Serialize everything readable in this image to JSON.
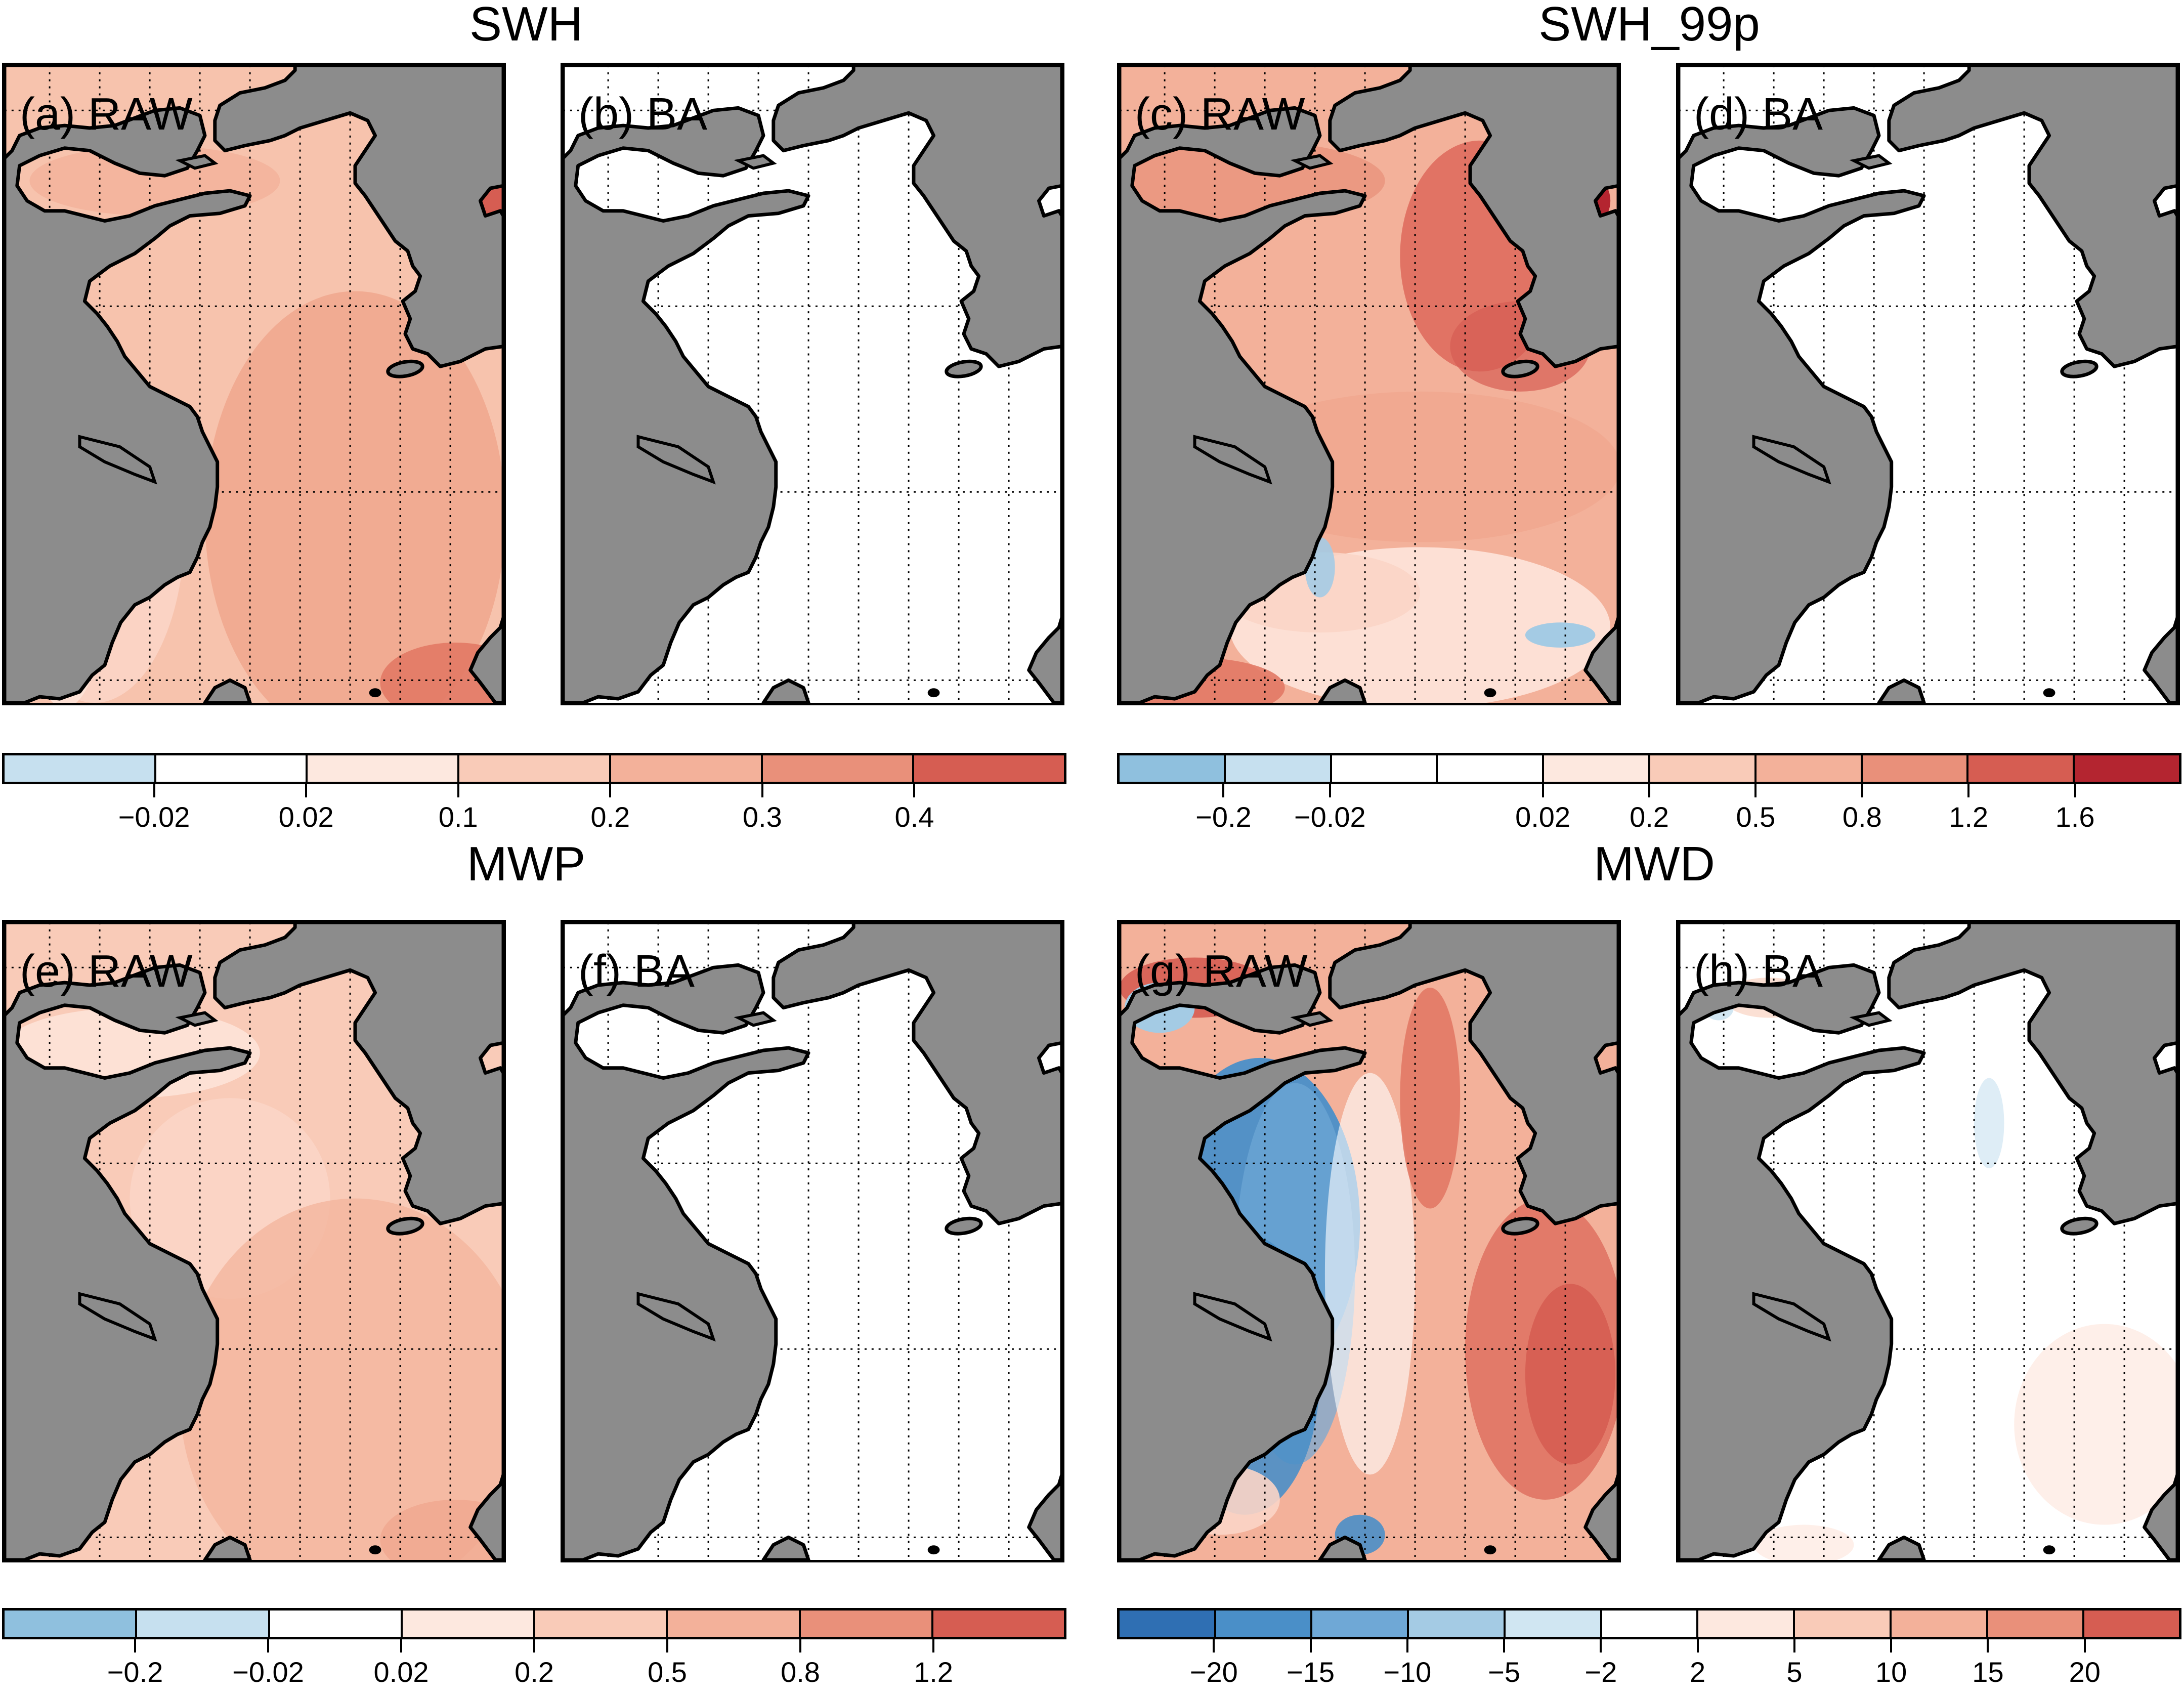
{
  "titles": {
    "swh": "SWH",
    "swh99": "SWH_99p",
    "mwp": "MWP",
    "mwd": "MWD"
  },
  "panels": [
    {
      "id": "a",
      "label": "(a) RAW",
      "variable": "SWH",
      "field": "raw-swh"
    },
    {
      "id": "b",
      "label": "(b) BA",
      "variable": "SWH",
      "field": "ba"
    },
    {
      "id": "c",
      "label": "(c) RAW",
      "variable": "SWH_99p",
      "field": "raw-swh99"
    },
    {
      "id": "d",
      "label": "(d) BA",
      "variable": "SWH_99p",
      "field": "ba"
    },
    {
      "id": "e",
      "label": "(e) RAW",
      "variable": "MWP",
      "field": "raw-mwp"
    },
    {
      "id": "f",
      "label": "(f) BA",
      "variable": "MWP",
      "field": "ba"
    },
    {
      "id": "g",
      "label": "(g) RAW",
      "variable": "MWD",
      "field": "raw-mwd"
    },
    {
      "id": "h",
      "label": "(h) BA",
      "variable": "MWD",
      "field": "ba-mwd"
    }
  ],
  "colorbars": {
    "swh": {
      "colors": [
        "#c6e0ef",
        "#ffffff",
        "#fde8df",
        "#f9cbb8",
        "#f3b19a",
        "#e9907a",
        "#d65d52"
      ],
      "ticks": [
        "−0.02",
        "0.02",
        "0.1",
        "0.2",
        "0.3",
        "0.4"
      ]
    },
    "swh99": {
      "colors": [
        "#8fc0de",
        "#c6e0ef",
        "#ffffff",
        "#ffffff",
        "#fde8df",
        "#f9cbb8",
        "#f3b19a",
        "#e9907a",
        "#d65d52",
        "#b42530"
      ],
      "ticks": [
        "−0.2",
        "−0.02",
        "0.02",
        "0.2",
        "0.5",
        "0.8",
        "1.2",
        "1.6"
      ],
      "tick_after": [
        1,
        2,
        3,
        4,
        5,
        6,
        7,
        8
      ]
    },
    "mwp": {
      "colors": [
        "#8fc0de",
        "#c6e0ef",
        "#ffffff",
        "#fde8df",
        "#f9cbb8",
        "#f3b19a",
        "#e9907a",
        "#d65d52"
      ],
      "ticks": [
        "−0.2",
        "−0.02",
        "0.02",
        "0.2",
        "0.5",
        "0.8",
        "1.2"
      ]
    },
    "mwd": {
      "colors": [
        "#2f6fb3",
        "#4a8fc8",
        "#6fa8d6",
        "#a4cbe4",
        "#d0e6f2",
        "#ffffff",
        "#fde8df",
        "#f9cbb8",
        "#f3b19a",
        "#e9907a",
        "#d65d52"
      ],
      "ticks": [
        "−20",
        "−15",
        "−10",
        "−5",
        "−2",
        "2",
        "5",
        "10",
        "15",
        "20"
      ]
    }
  },
  "colors": {
    "land": "#8c8c8c",
    "coast": "#000000",
    "grid": "#000000"
  }
}
